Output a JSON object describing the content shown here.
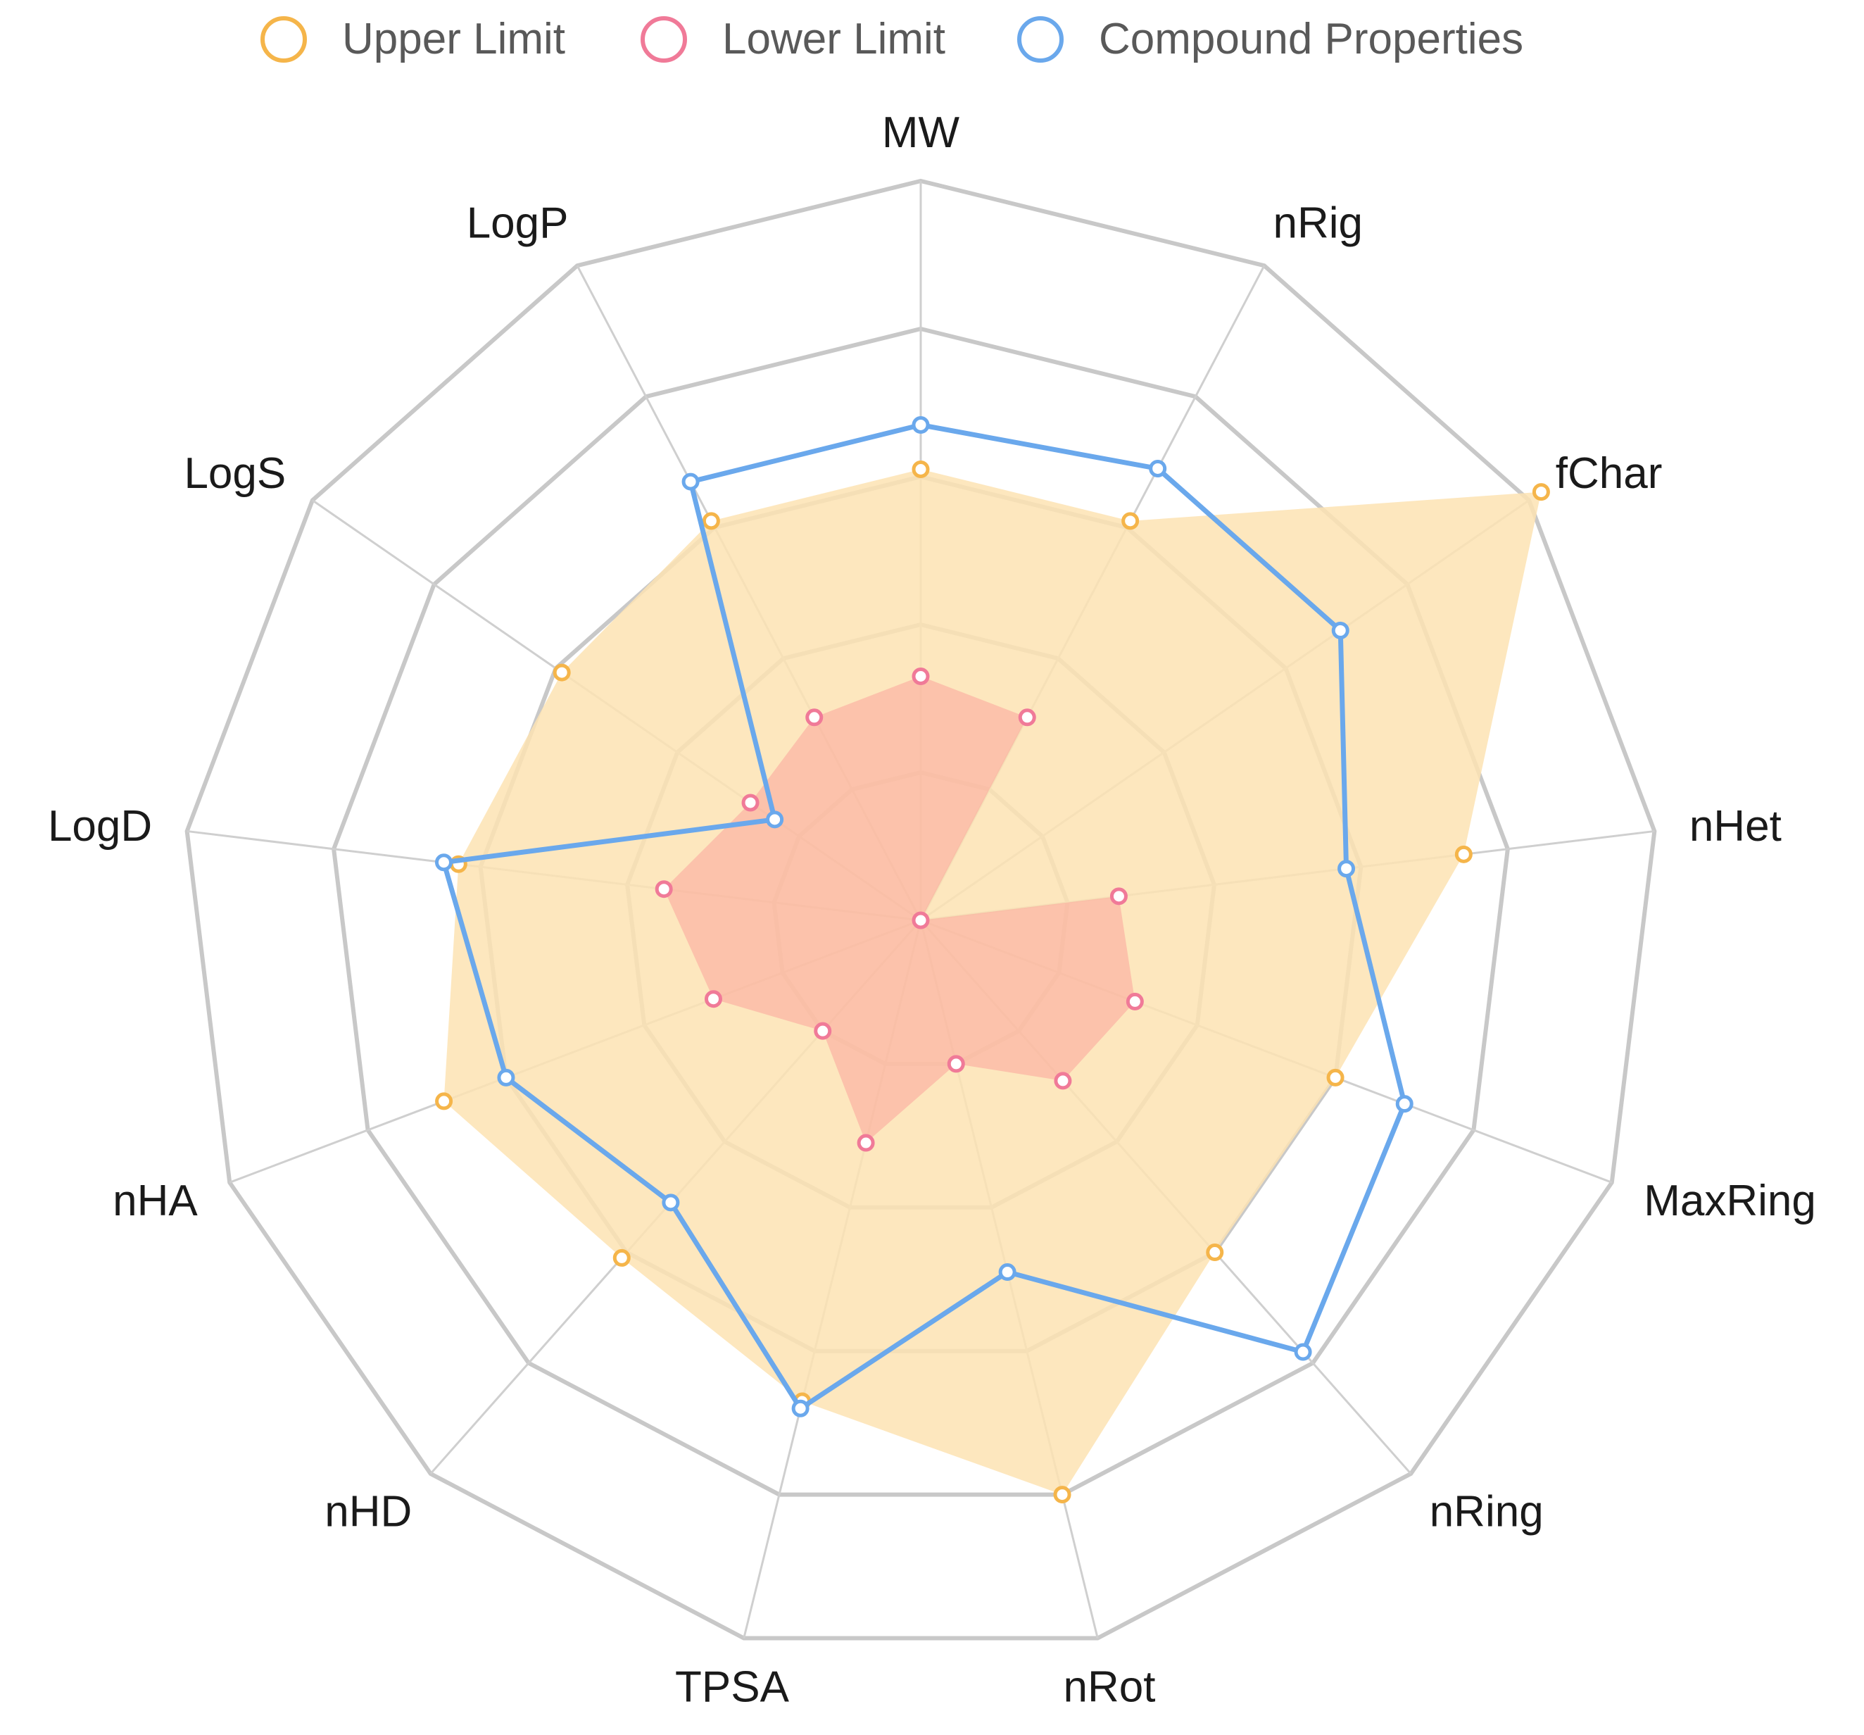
{
  "chart_data": {
    "type": "radar",
    "title": "",
    "legend_position": "top-center",
    "axes": [
      "MW",
      "nRig",
      "fChar",
      "nHet",
      "MaxRing",
      "nRing",
      "nRot",
      "TPSA",
      "nHD",
      "nHA",
      "LogD",
      "LogS",
      "LogP"
    ],
    "rings": 5,
    "r_max": 1.0,
    "series": [
      {
        "name": "Upper Limit",
        "color": "#f5b54a",
        "fill": "#fde3b3",
        "fill_opacity": 0.85,
        "values": [
          0.61,
          0.61,
          1.02,
          0.74,
          0.6,
          0.6,
          0.8,
          0.67,
          0.61,
          0.69,
          0.63,
          0.59,
          0.61
        ]
      },
      {
        "name": "Lower Limit",
        "color": "#f07a98",
        "fill": "#fba49b",
        "fill_opacity": 0.55,
        "values": [
          0.33,
          0.31,
          0.0,
          0.27,
          0.31,
          0.29,
          0.2,
          0.31,
          0.2,
          0.3,
          0.35,
          0.28,
          0.31
        ]
      },
      {
        "name": "Compound Properties",
        "color": "#6aa8ec",
        "fill": "none",
        "fill_opacity": 0,
        "values": [
          0.67,
          0.69,
          0.69,
          0.58,
          0.7,
          0.78,
          0.49,
          0.68,
          0.51,
          0.6,
          0.65,
          0.24,
          0.67
        ]
      }
    ]
  }
}
